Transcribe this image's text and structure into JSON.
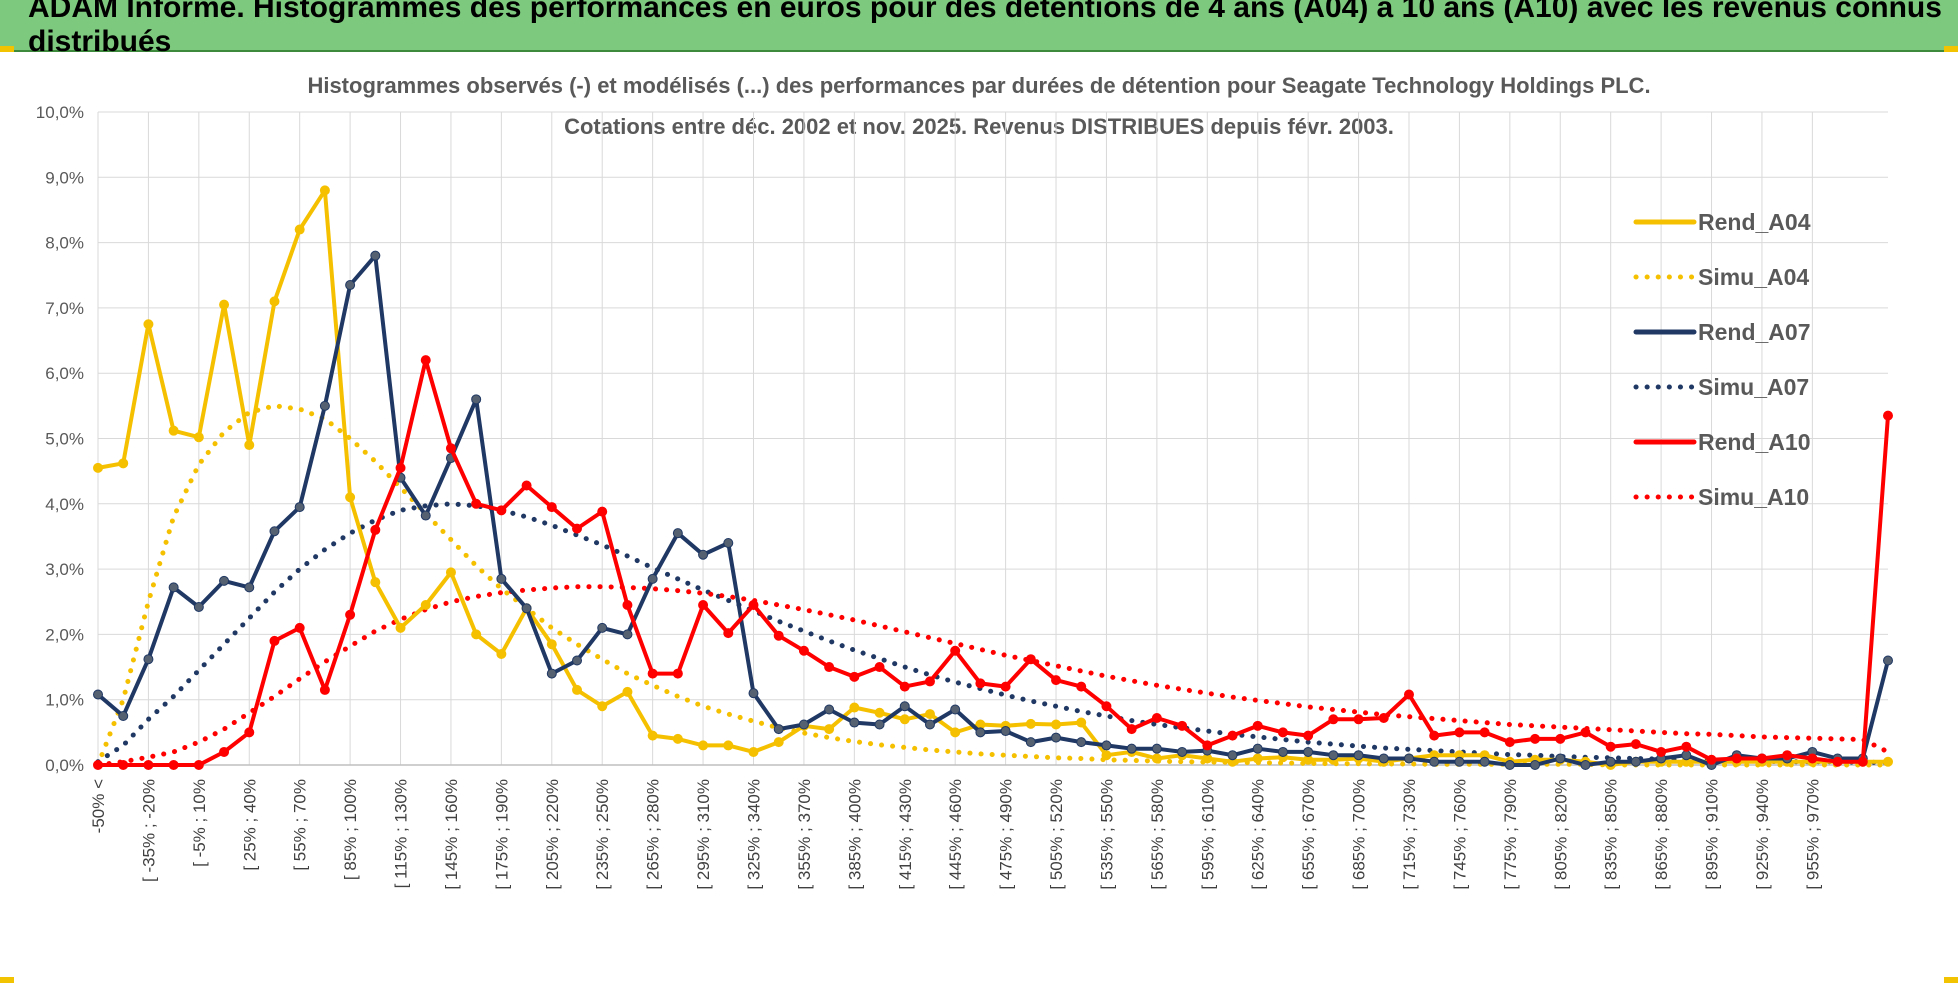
{
  "banner": {
    "title": "ADAM Informe. Histogrammes des performances en euros pour des détentions de 4 ans (A04) à 10 ans (A10) avec les revenus connus distribués",
    "bg_color": "#7dc97d",
    "accent_color": "#f2c300"
  },
  "chart_data": {
    "type": "line",
    "title_line1": "Histogrammes observés (-) et modélisés (...) des performances par durées de détention pour Seagate Technology Holdings PLC.",
    "title_line2": "Cotations entre déc. 2002 et nov. 2025. Revenus DISTRIBUES depuis févr. 2003.",
    "xlabel": "",
    "ylabel": "",
    "ylim": [
      0,
      10
    ],
    "y_ticks": [
      "0,0%",
      "1,0%",
      "2,0%",
      "3,0%",
      "4,0%",
      "5,0%",
      "6,0%",
      "7,0%",
      "8,0%",
      "9,0%",
      "10,0%"
    ],
    "grid": true,
    "legend_position": "top-right",
    "x_tick_labels": [
      "-50% <",
      "[ -35% ; -20%",
      "[ -5% ; 10%",
      "[ 25% ; 40%",
      "[ 55% ; 70%",
      "[ 85% ; 100%",
      "[ 115% ; 130%",
      "[ 145% ; 160%",
      "[ 175% ; 190%",
      "[ 205% ; 220%",
      "[ 235% ; 250%",
      "[ 265% ; 280%",
      "[ 295% ; 310%",
      "[ 325% ; 340%",
      "[ 355% ; 370%",
      "[ 385% ; 400%",
      "[ 415% ; 430%",
      "[ 445% ; 460%",
      "[ 475% ; 490%",
      "[ 505% ; 520%",
      "[ 535% ; 550%",
      "[ 565% ; 580%",
      "[ 595% ; 610%",
      "[ 625% ; 640%",
      "[ 655% ; 670%",
      "[ 685% ; 700%",
      "[ 715% ; 730%",
      "[ 745% ; 760%",
      "[ 775% ; 790%",
      "[ 805% ; 820%",
      "[ 835% ; 850%",
      "[ 865% ; 880%",
      "[ 895% ; 910%",
      "[ 925% ; 940%",
      "[ 955% ; 970%"
    ],
    "series": [
      {
        "name": "Rend_A04",
        "color": "#f5c000",
        "style": "solid",
        "markers": true,
        "values": [
          4.55,
          4.62,
          6.75,
          5.12,
          5.02,
          7.05,
          4.9,
          7.1,
          8.2,
          8.8,
          4.1,
          2.8,
          2.1,
          2.45,
          2.95,
          2.0,
          1.7,
          2.4,
          1.85,
          1.15,
          0.9,
          1.12,
          0.45,
          0.4,
          0.3,
          0.3,
          0.2,
          0.35,
          0.6,
          0.55,
          0.88,
          0.8,
          0.7,
          0.78,
          0.5,
          0.62,
          0.6,
          0.63,
          0.62,
          0.65,
          0.15,
          0.2,
          0.1,
          0.15,
          0.1,
          0.05,
          0.1,
          0.12,
          0.08,
          0.08,
          0.1,
          0.05,
          0.1,
          0.15,
          0.15,
          0.15,
          0.05,
          0.08,
          0.08,
          0.05,
          0.0,
          0.05,
          0.05,
          0.05,
          0.05,
          0.05,
          0.05,
          0.05,
          0.05,
          0.05,
          0.05,
          0.05
        ]
      },
      {
        "name": "Simu_A04",
        "color": "#f5c000",
        "style": "dotted",
        "markers": false,
        "values": [
          0.0,
          1.0,
          2.5,
          3.8,
          4.6,
          5.1,
          5.4,
          5.5,
          5.45,
          5.3,
          5.0,
          4.65,
          4.25,
          3.85,
          3.45,
          3.05,
          2.7,
          2.4,
          2.1,
          1.85,
          1.62,
          1.4,
          1.22,
          1.05,
          0.9,
          0.78,
          0.67,
          0.57,
          0.49,
          0.42,
          0.36,
          0.31,
          0.27,
          0.23,
          0.2,
          0.17,
          0.15,
          0.13,
          0.11,
          0.1,
          0.08,
          0.07,
          0.06,
          0.05,
          0.045,
          0.04,
          0.035,
          0.03,
          0.025,
          0.02,
          0.02,
          0.015,
          0.015,
          0.01,
          0.01,
          0.01,
          0.01,
          0.01,
          0.01,
          0.01,
          0.0,
          0.0,
          0.0,
          0.0,
          0.0,
          0.0,
          0.0,
          0.0,
          0.0,
          0.0,
          0.0,
          0.0
        ]
      },
      {
        "name": "Rend_A07",
        "color": "#1f3864",
        "style": "solid",
        "markers": true,
        "values": [
          1.08,
          0.75,
          1.62,
          2.72,
          2.42,
          2.82,
          2.72,
          3.58,
          3.95,
          5.5,
          7.35,
          7.8,
          4.4,
          3.82,
          4.7,
          5.6,
          2.85,
          2.4,
          1.4,
          1.6,
          2.1,
          2.0,
          2.85,
          3.55,
          3.22,
          3.4,
          1.1,
          0.55,
          0.62,
          0.85,
          0.65,
          0.62,
          0.9,
          0.62,
          0.85,
          0.5,
          0.52,
          0.35,
          0.42,
          0.35,
          0.3,
          0.25,
          0.25,
          0.2,
          0.22,
          0.15,
          0.25,
          0.2,
          0.2,
          0.15,
          0.15,
          0.1,
          0.1,
          0.05,
          0.05,
          0.05,
          0.0,
          0.0,
          0.1,
          0.0,
          0.05,
          0.05,
          0.1,
          0.15,
          0.0,
          0.15,
          0.1,
          0.1,
          0.2,
          0.1,
          0.1,
          1.6
        ]
      },
      {
        "name": "Simu_A07",
        "color": "#1f3864",
        "style": "dotted",
        "markers": false,
        "values": [
          0.05,
          0.3,
          0.7,
          1.05,
          1.45,
          1.85,
          2.25,
          2.65,
          3.0,
          3.3,
          3.55,
          3.75,
          3.9,
          3.97,
          4.0,
          3.97,
          3.9,
          3.8,
          3.67,
          3.52,
          3.37,
          3.2,
          3.02,
          2.85,
          2.68,
          2.52,
          2.36,
          2.2,
          2.05,
          1.9,
          1.76,
          1.63,
          1.5,
          1.38,
          1.27,
          1.17,
          1.07,
          0.98,
          0.9,
          0.82,
          0.75,
          0.68,
          0.62,
          0.57,
          0.52,
          0.47,
          0.43,
          0.39,
          0.35,
          0.32,
          0.29,
          0.26,
          0.24,
          0.22,
          0.2,
          0.18,
          0.16,
          0.15,
          0.13,
          0.12,
          0.11,
          0.1,
          0.09,
          0.08,
          0.07,
          0.07,
          0.06,
          0.05,
          0.05,
          0.05,
          0.04,
          0.04
        ]
      },
      {
        "name": "Rend_A10",
        "color": "#ff0000",
        "style": "solid",
        "markers": true,
        "values": [
          0.0,
          0.0,
          0.0,
          0.0,
          0.0,
          0.2,
          0.5,
          1.9,
          2.1,
          1.15,
          2.3,
          3.6,
          4.55,
          6.2,
          4.85,
          4.0,
          3.9,
          4.28,
          3.95,
          3.62,
          3.88,
          2.45,
          1.4,
          1.4,
          2.45,
          2.02,
          2.45,
          1.98,
          1.75,
          1.5,
          1.35,
          1.5,
          1.2,
          1.28,
          1.75,
          1.25,
          1.2,
          1.62,
          1.3,
          1.2,
          0.9,
          0.55,
          0.72,
          0.6,
          0.3,
          0.45,
          0.6,
          0.5,
          0.45,
          0.7,
          0.7,
          0.72,
          1.08,
          0.45,
          0.5,
          0.5,
          0.35,
          0.4,
          0.4,
          0.5,
          0.28,
          0.32,
          0.2,
          0.28,
          0.08,
          0.1,
          0.1,
          0.15,
          0.1,
          0.05,
          0.05,
          5.35
        ]
      },
      {
        "name": "Simu_A10",
        "color": "#ff0000",
        "style": "dotted",
        "markers": false,
        "values": [
          0.0,
          0.05,
          0.12,
          0.2,
          0.35,
          0.55,
          0.8,
          1.05,
          1.32,
          1.58,
          1.82,
          2.05,
          2.23,
          2.38,
          2.5,
          2.58,
          2.64,
          2.68,
          2.71,
          2.73,
          2.73,
          2.72,
          2.7,
          2.67,
          2.63,
          2.58,
          2.52,
          2.45,
          2.38,
          2.3,
          2.22,
          2.13,
          2.04,
          1.95,
          1.86,
          1.77,
          1.68,
          1.6,
          1.52,
          1.44,
          1.36,
          1.29,
          1.22,
          1.16,
          1.1,
          1.04,
          0.99,
          0.94,
          0.89,
          0.85,
          0.81,
          0.77,
          0.74,
          0.71,
          0.68,
          0.65,
          0.62,
          0.6,
          0.58,
          0.56,
          0.54,
          0.52,
          0.5,
          0.48,
          0.47,
          0.45,
          0.43,
          0.42,
          0.41,
          0.4,
          0.39,
          0.2
        ]
      }
    ]
  }
}
